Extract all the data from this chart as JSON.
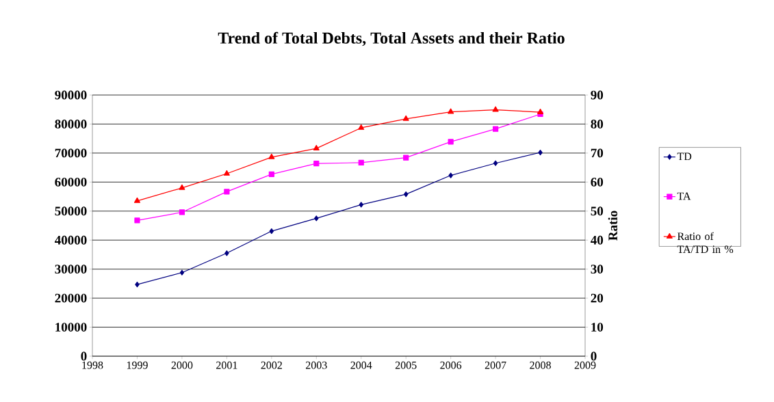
{
  "chart_data": {
    "type": "line",
    "title": "Trend of Total Debts, Total Assets and their Ratio",
    "y2label": "Ratio",
    "x": [
      1999,
      2000,
      2001,
      2002,
      2003,
      2004,
      2005,
      2006,
      2007,
      2008
    ],
    "series": [
      {
        "name": "TD",
        "color": "#000080",
        "marker": "diamond",
        "values": [
          24700,
          28800,
          35500,
          43100,
          47500,
          52200,
          55800,
          62300,
          66500,
          70200
        ]
      },
      {
        "name": "TA",
        "color": "#ff00ff",
        "marker": "square",
        "values": [
          46800,
          49600,
          56700,
          62700,
          66400,
          66700,
          68400,
          73900,
          78300,
          83400
        ]
      },
      {
        "name": "Ratio of TA/TD in %",
        "color": "#ff0000",
        "marker": "triangle",
        "axis": "y2",
        "values": [
          53.5,
          58.0,
          62.9,
          68.6,
          71.6,
          78.7,
          81.8,
          84.2,
          84.9,
          84.1
        ]
      }
    ],
    "xlim": [
      1998,
      2009
    ],
    "xticks": [
      1998,
      1999,
      2000,
      2001,
      2002,
      2003,
      2004,
      2005,
      2006,
      2007,
      2008,
      2009
    ],
    "ylim": [
      0,
      90000
    ],
    "yticks": [
      0,
      10000,
      20000,
      30000,
      40000,
      50000,
      60000,
      70000,
      80000,
      90000
    ],
    "y2lim": [
      0,
      90
    ],
    "y2ticks": [
      0,
      10,
      20,
      30,
      40,
      50,
      60,
      70,
      80,
      90
    ],
    "grid": "y",
    "legend": "right"
  }
}
